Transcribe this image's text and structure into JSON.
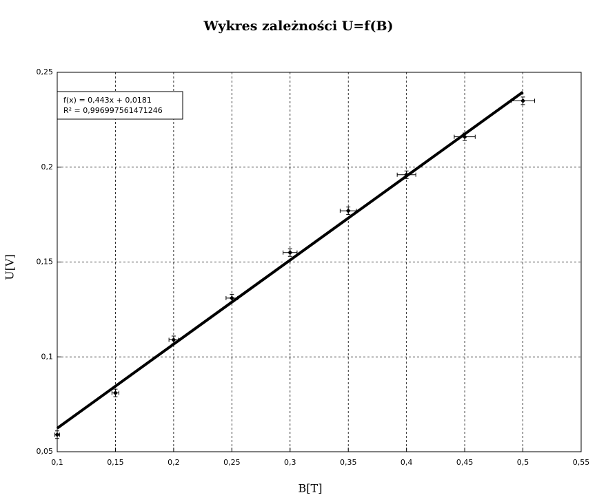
{
  "chart_data": {
    "type": "scatter",
    "title": "Wykres zależności U=f(B)",
    "x_label": "B[T]",
    "y_label": "U[V]",
    "annotations": [
      "f(x) = 0,443x + 0,0181",
      "R² = 0,996997561471246"
    ],
    "xlim": [
      0.1,
      0.55
    ],
    "ylim": [
      0.05,
      0.25
    ],
    "xticks": [
      {
        "value": 0.1,
        "label": "0,1"
      },
      {
        "value": 0.15,
        "label": "0,15"
      },
      {
        "value": 0.2,
        "label": "0,2"
      },
      {
        "value": 0.25,
        "label": "0,25"
      },
      {
        "value": 0.3,
        "label": "0,3"
      },
      {
        "value": 0.35,
        "label": "0,35"
      },
      {
        "value": 0.4,
        "label": "0,4"
      },
      {
        "value": 0.45,
        "label": "0,45"
      },
      {
        "value": 0.5,
        "label": "0,5"
      },
      {
        "value": 0.55,
        "label": "0,55"
      }
    ],
    "yticks": [
      {
        "value": 0.05,
        "label": "0,05"
      },
      {
        "value": 0.1,
        "label": "0,1"
      },
      {
        "value": 0.15,
        "label": "0,15"
      },
      {
        "value": 0.2,
        "label": "0,2"
      },
      {
        "value": 0.25,
        "label": "0,25"
      }
    ],
    "grid": true,
    "series": [
      {
        "color": "#000000",
        "x": [
          0.1,
          0.15,
          0.2,
          0.25,
          0.3,
          0.35,
          0.4,
          0.45,
          0.5
        ],
        "values": [
          0.059,
          0.081,
          0.109,
          0.131,
          0.155,
          0.177,
          0.196,
          0.216,
          0.235
        ],
        "xerr": [
          0.002,
          0.003,
          0.004,
          0.005,
          0.006,
          0.007,
          0.008,
          0.009,
          0.01
        ],
        "yerr": [
          0.002,
          0.002,
          0.002,
          0.002,
          0.002,
          0.002,
          0.002,
          0.002,
          0.002
        ]
      },
      {
        "type": "line",
        "color": "#000000",
        "x": [
          0.1,
          0.5
        ],
        "values": [
          0.0624,
          0.2396
        ]
      }
    ]
  }
}
